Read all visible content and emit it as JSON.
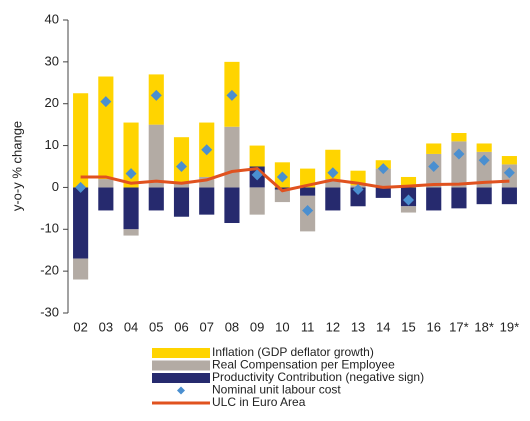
{
  "chart_data": {
    "type": "bar",
    "y_label": "y-o-y % change",
    "categories": [
      "02",
      "03",
      "04",
      "05",
      "06",
      "07",
      "08",
      "09",
      "10",
      "11",
      "12",
      "13",
      "14",
      "15",
      "16",
      "17*",
      "18*",
      "19*"
    ],
    "series": [
      {
        "name": "Inflation (GDP deflator growth)",
        "color": "#ffd400",
        "kind": "bar",
        "values": [
          22.5,
          24.5,
          15.5,
          12,
          11,
          13,
          15.5,
          5,
          6,
          4.5,
          7,
          3.5,
          2,
          2.5,
          2.5,
          2,
          2,
          2
        ]
      },
      {
        "name": "Real Compensation per Employee",
        "color": "#b3aba4",
        "kind": "bar",
        "values": [
          -5,
          2,
          -1.5,
          15,
          1,
          2.5,
          14.5,
          -6.5,
          -3,
          -8.5,
          2,
          0.5,
          4.5,
          -1.5,
          8,
          11,
          8.5,
          5.5
        ]
      },
      {
        "name": "Productivity Contribution (negative sign)",
        "color": "#262a6e",
        "kind": "bar",
        "values": [
          -17,
          -5.5,
          -10,
          -5.5,
          -7,
          -6.5,
          -8.5,
          5,
          -0.5,
          -2,
          -5.5,
          -4.5,
          -2.5,
          -4.5,
          -5.5,
          -5,
          -4,
          -4
        ]
      },
      {
        "name": "Nominal unit labour cost",
        "color": "#4a8fd0",
        "kind": "scatter",
        "values": [
          0,
          20.5,
          3.3,
          22,
          5,
          9,
          22,
          3,
          2.5,
          -5.5,
          3.5,
          -0.5,
          4.5,
          -3,
          5,
          8,
          6.5,
          3.5
        ]
      },
      {
        "name": "ULC in Euro Area",
        "color": "#e0521f",
        "kind": "line",
        "values": [
          2.5,
          2.5,
          1,
          1.5,
          1,
          1.8,
          3.8,
          4.5,
          -0.8,
          0.5,
          1.8,
          1,
          0,
          0.3,
          0.7,
          0.8,
          1.2,
          1.5
        ]
      }
    ],
    "ylim": [
      -30,
      40
    ],
    "yticks": [
      -30,
      -20,
      -10,
      0,
      10,
      20,
      30,
      40
    ]
  }
}
